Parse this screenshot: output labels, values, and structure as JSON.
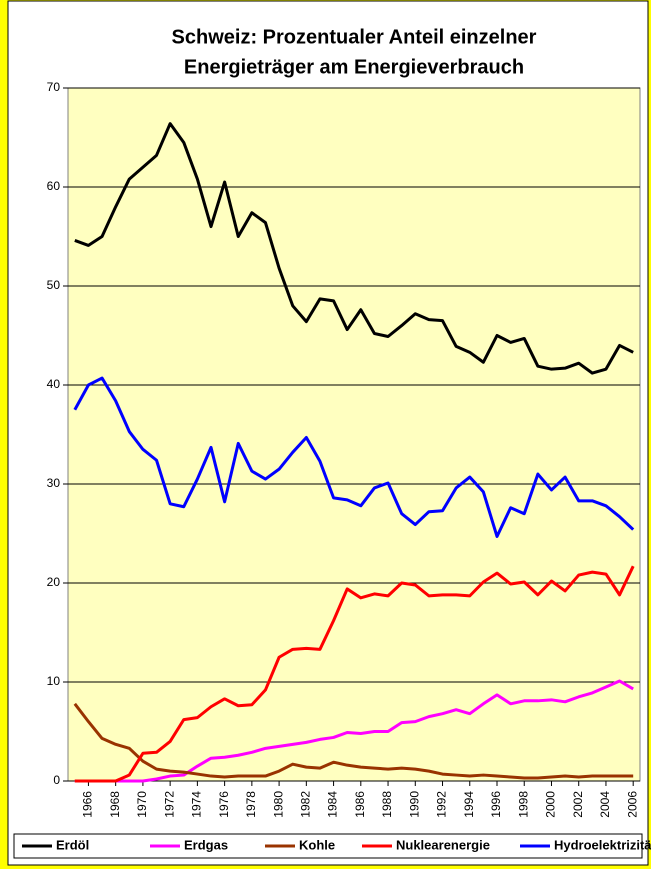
{
  "chart_data": {
    "type": "line",
    "title_lines": [
      "Schweiz: Prozentualer Anteil einzelner",
      "Energieträger am Energieverbrauch"
    ],
    "x": [
      1965,
      1966,
      1967,
      1968,
      1969,
      1970,
      1971,
      1972,
      1973,
      1974,
      1975,
      1976,
      1977,
      1978,
      1979,
      1980,
      1981,
      1982,
      1983,
      1984,
      1985,
      1986,
      1987,
      1988,
      1989,
      1990,
      1991,
      1992,
      1993,
      1994,
      1995,
      1996,
      1997,
      1998,
      1999,
      2000,
      2001,
      2002,
      2003,
      2004,
      2005,
      2006
    ],
    "xlim": [
      1964.5,
      2006.5
    ],
    "xticks": [
      1966,
      1968,
      1970,
      1972,
      1974,
      1976,
      1978,
      1980,
      1982,
      1984,
      1986,
      1988,
      1990,
      1992,
      1994,
      1996,
      1998,
      2000,
      2002,
      2004,
      2006
    ],
    "ylim": [
      0,
      70
    ],
    "yticks": [
      0,
      10,
      20,
      30,
      40,
      50,
      60,
      70
    ],
    "grid": true,
    "legend": "bottom",
    "series": [
      {
        "name": "Erdöl",
        "color": "#000000",
        "values": [
          54.6,
          54.1,
          55.0,
          58.0,
          60.8,
          62.0,
          63.2,
          66.4,
          64.5,
          60.8,
          56.0,
          60.5,
          55.0,
          57.4,
          56.4,
          51.8,
          48.0,
          46.4,
          48.7,
          48.5,
          45.6,
          47.6,
          45.2,
          44.9,
          46.0,
          47.2,
          46.6,
          46.5,
          43.9,
          43.3,
          42.3,
          45.0,
          44.3,
          44.7,
          41.9,
          41.6,
          41.7,
          42.2,
          41.2,
          41.6,
          44.0,
          43.3
        ]
      },
      {
        "name": "Erdgas",
        "color": "#ff00ff",
        "values": [
          0,
          0,
          0,
          0,
          0,
          0,
          0.2,
          0.5,
          0.6,
          1.5,
          2.3,
          2.4,
          2.6,
          2.9,
          3.3,
          3.5,
          3.7,
          3.9,
          4.2,
          4.4,
          4.9,
          4.8,
          5.0,
          5.0,
          5.9,
          6.0,
          6.5,
          6.8,
          7.2,
          6.8,
          7.8,
          8.7,
          7.8,
          8.1,
          8.1,
          8.2,
          8.0,
          8.5,
          8.9,
          9.5,
          10.1,
          9.3
        ]
      },
      {
        "name": "Kohle",
        "color": "#993300",
        "values": [
          7.8,
          6.0,
          4.3,
          3.7,
          3.3,
          2.0,
          1.2,
          1.0,
          0.9,
          0.7,
          0.5,
          0.4,
          0.5,
          0.5,
          0.5,
          1.0,
          1.7,
          1.4,
          1.3,
          1.9,
          1.6,
          1.4,
          1.3,
          1.2,
          1.3,
          1.2,
          1.0,
          0.7,
          0.6,
          0.5,
          0.6,
          0.5,
          0.4,
          0.3,
          0.3,
          0.4,
          0.5,
          0.4,
          0.5,
          0.5,
          0.5,
          0.5
        ]
      },
      {
        "name": "Nuklearenergie",
        "color": "#ff0000",
        "values": [
          0,
          0,
          0,
          0,
          0.6,
          2.8,
          2.9,
          4.0,
          6.2,
          6.4,
          7.5,
          8.3,
          7.6,
          7.7,
          9.2,
          12.5,
          13.3,
          13.4,
          13.3,
          16.2,
          19.4,
          18.5,
          18.9,
          18.7,
          20.0,
          19.8,
          18.7,
          18.8,
          18.8,
          18.7,
          20.1,
          21.0,
          19.9,
          20.1,
          18.8,
          20.2,
          19.2,
          20.8,
          21.1,
          20.9,
          18.8,
          21.7
        ]
      },
      {
        "name": "Hydroelektrizität",
        "color": "#0000ff",
        "values": [
          37.5,
          40.0,
          40.7,
          38.4,
          35.3,
          33.5,
          32.4,
          28.0,
          27.7,
          30.5,
          33.7,
          28.2,
          34.1,
          31.3,
          30.5,
          31.5,
          33.2,
          34.7,
          32.3,
          28.6,
          28.4,
          27.8,
          29.6,
          30.1,
          27.0,
          25.9,
          27.2,
          27.3,
          29.6,
          30.7,
          29.2,
          24.7,
          27.6,
          27.0,
          31.0,
          29.4,
          30.7,
          28.3,
          28.3,
          27.8,
          26.7,
          25.4
        ]
      }
    ]
  }
}
